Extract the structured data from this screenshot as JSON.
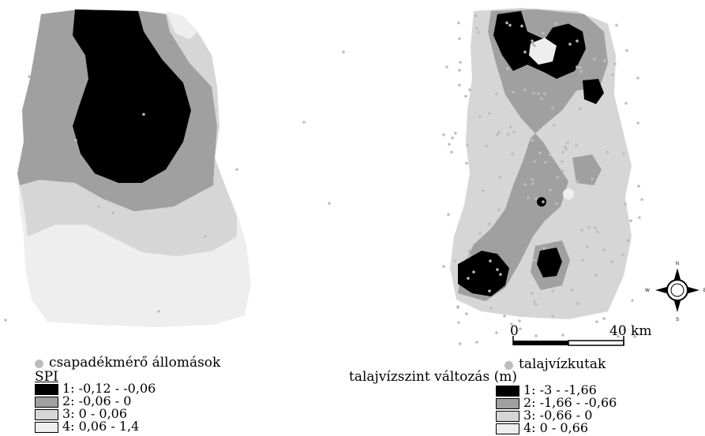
{
  "left_map": {
    "stations_label": "csapadékmérő állomások",
    "legend_title": "SPI",
    "classes": [
      {
        "label": "1: -0,12 - -0,06",
        "color": "#000000"
      },
      {
        "label": "2: -0,06 - 0",
        "color": "#a0a0a0"
      },
      {
        "label": "3: 0 - 0,06",
        "color": "#d6d6d6"
      },
      {
        "label": "4: 0,06 - 1,4",
        "color": "#eeeeee"
      }
    ]
  },
  "right_map": {
    "wells_label": "talajvízkutak",
    "legend_title": "talajvízszint változás (m)",
    "classes": [
      {
        "label": "1: -3 - -1,66",
        "color": "#000000"
      },
      {
        "label": "2: -1,66 - -0,66",
        "color": "#a0a0a0"
      },
      {
        "label": "3: -0,66 - 0",
        "color": "#d6d6d6"
      },
      {
        "label": "4: 0 - 0,66",
        "color": "#eeeeee"
      }
    ],
    "scale_bar": {
      "start": "0",
      "end": "40 km"
    },
    "compass": {
      "n": "N",
      "s": "S",
      "w": "W",
      "e": "E"
    }
  },
  "point_color": "#bdbdbd"
}
